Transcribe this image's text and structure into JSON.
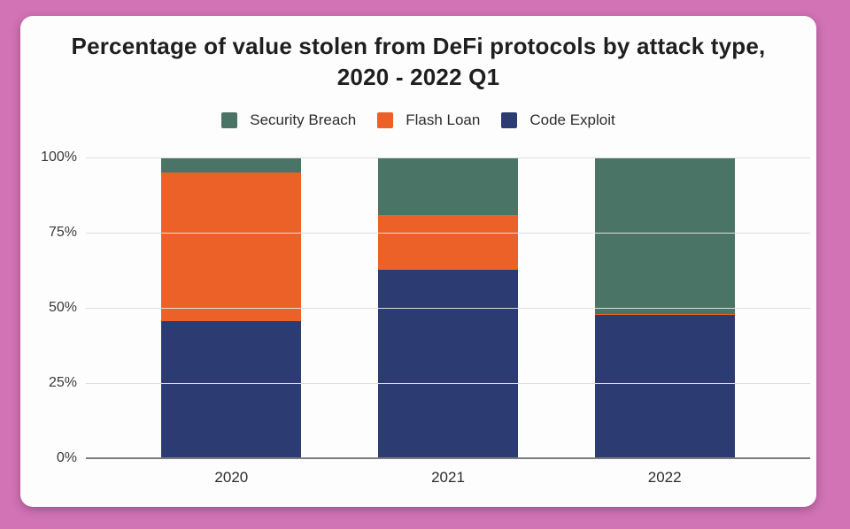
{
  "window": {
    "background_color": "#d173b5",
    "card_color": "#fdfdfd"
  },
  "title": {
    "line1": "Percentage of value stolen from DeFi protocols by attack type,",
    "line2": "2020 - 2022 Q1"
  },
  "chart_data": {
    "type": "stacked_bar",
    "title": "Percentage of value stolen from DeFi protocols by attack type, 2020 - 2022 Q1",
    "categories": [
      "2020",
      "2021",
      "2022"
    ],
    "series": [
      {
        "name": "Security Breach",
        "color": "#4a7465",
        "values": [
          5,
          19,
          52
        ]
      },
      {
        "name": "Flash Loan",
        "color": "#eb6128",
        "values": [
          49.5,
          18.5,
          0.5
        ]
      },
      {
        "name": "Code Exploit",
        "color": "#2c3b72",
        "values": [
          45.5,
          62.5,
          47.5
        ]
      }
    ],
    "stack_order_top_to_bottom": [
      "Security Breach",
      "Flash Loan",
      "Code Exploit"
    ],
    "unit": "percent",
    "ylim": [
      0,
      100
    ],
    "y_ticks": [
      {
        "label": "100%",
        "value": 100
      },
      {
        "label": "75%",
        "value": 75
      },
      {
        "label": "50%",
        "value": 50
      },
      {
        "label": "25%",
        "value": 25
      },
      {
        "label": "0%",
        "value": 0
      }
    ],
    "grid": true,
    "legend_position": "top"
  }
}
